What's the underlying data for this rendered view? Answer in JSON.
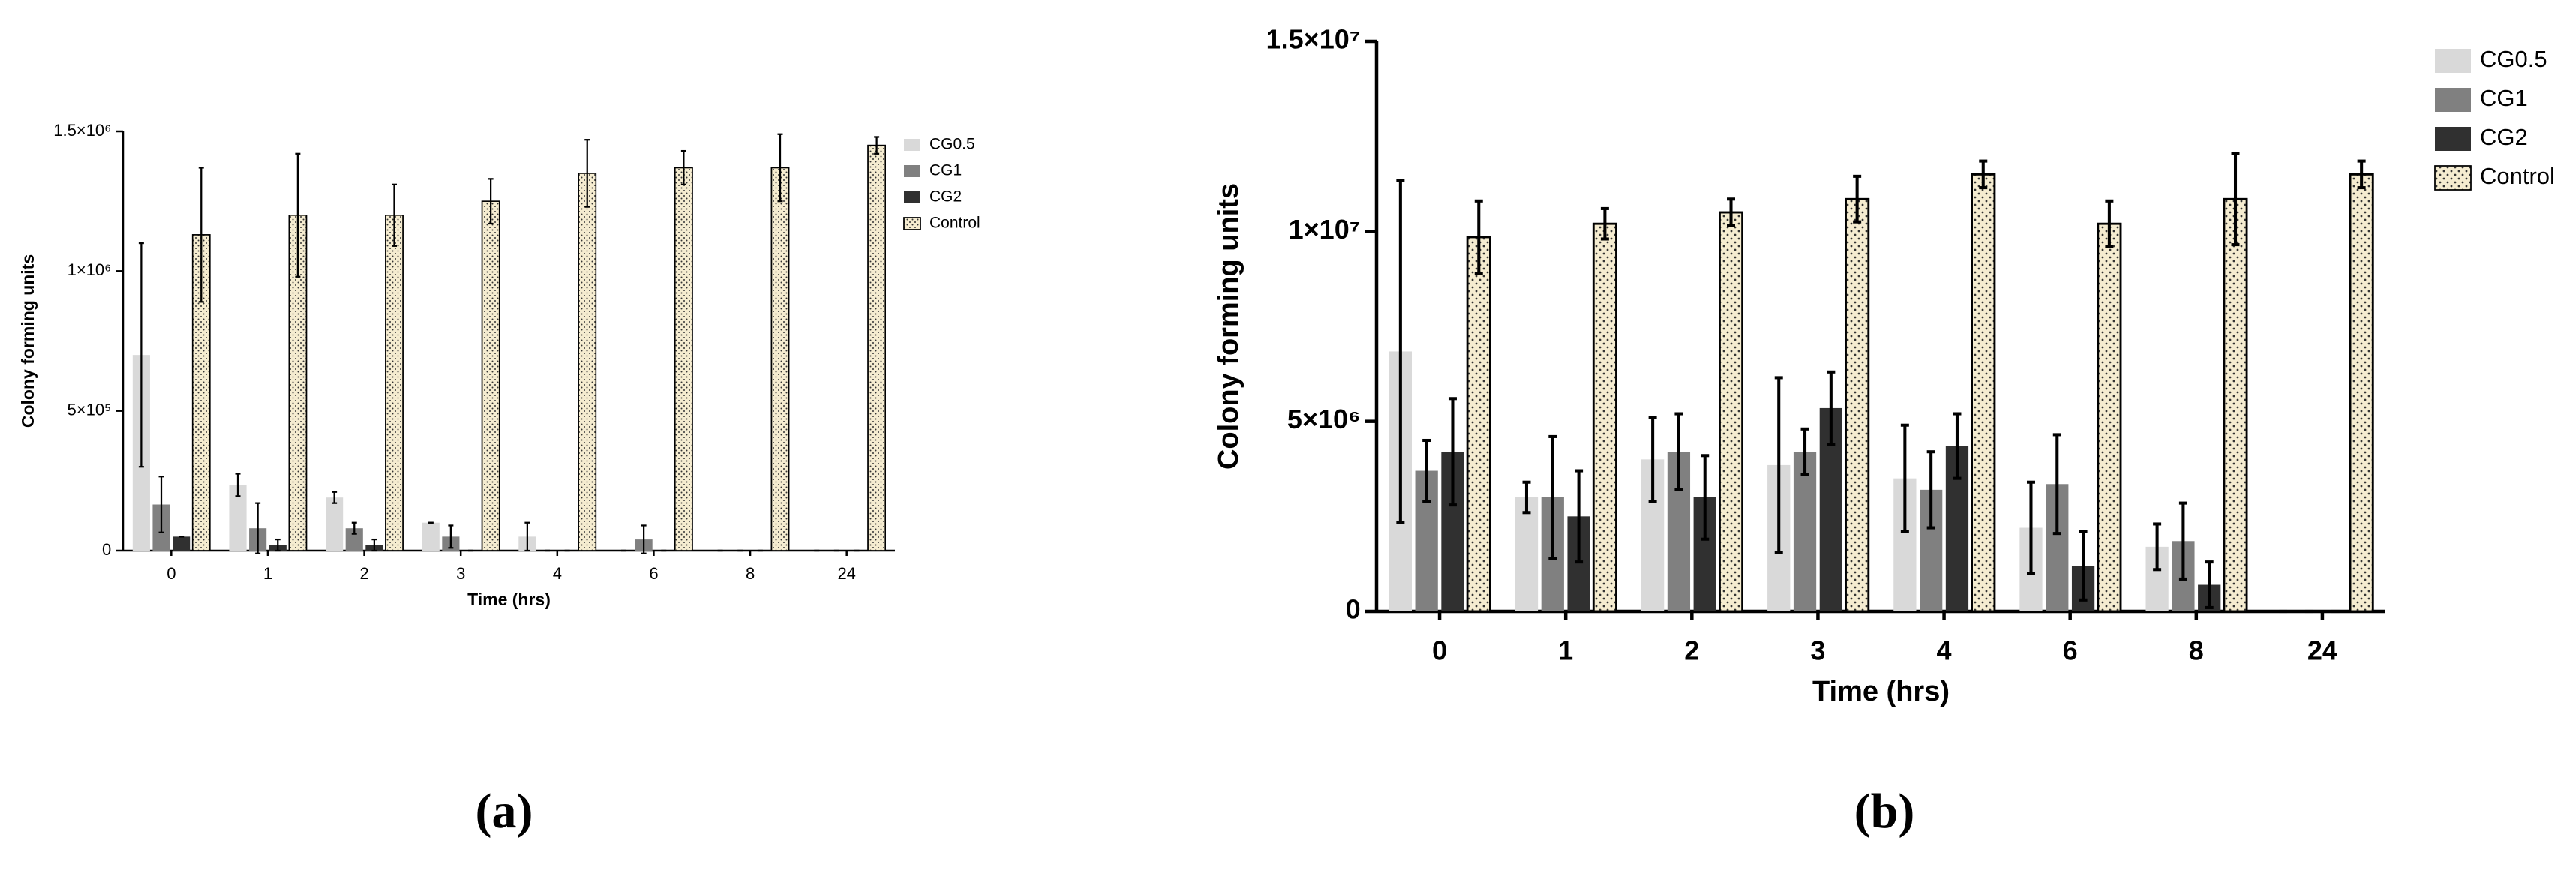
{
  "chart_data": [
    {
      "type": "bar",
      "title": "(a)",
      "x_label": "Time (hrs)",
      "y_label": "Colony forming units",
      "categories": [
        "0",
        "1",
        "2",
        "3",
        "4",
        "6",
        "8",
        "24"
      ],
      "ylim": [
        0,
        1500000
      ],
      "yticks": [
        0,
        {
          "value": 500000,
          "label": "5×10⁵"
        },
        {
          "value": 1000000,
          "label": "1×10⁶"
        },
        {
          "value": 1500000,
          "label": "1.5×10⁶"
        }
      ],
      "legend": "right",
      "series": [
        {
          "name": "CG0.5",
          "color": "#d9d9d9",
          "values": [
            700000,
            235000,
            190000,
            100000,
            50000,
            0,
            0,
            0
          ],
          "errors": [
            400000,
            40000,
            20000,
            0,
            50000,
            0,
            0,
            0
          ]
        },
        {
          "name": "CG1",
          "color": "#808080",
          "values": [
            165000,
            80000,
            80000,
            50000,
            0,
            40000,
            0,
            0
          ],
          "errors": [
            100000,
            90000,
            20000,
            40000,
            0,
            50000,
            0,
            0
          ]
        },
        {
          "name": "CG2",
          "color": "#303030",
          "values": [
            50000,
            20000,
            20000,
            0,
            0,
            0,
            0,
            0
          ],
          "errors": [
            0,
            20000,
            20000,
            0,
            0,
            0,
            0,
            0
          ]
        },
        {
          "name": "Control",
          "color": "#f5ecd0",
          "hatch": "dots",
          "values": [
            1130000,
            1200000,
            1200000,
            1250000,
            1350000,
            1370000,
            1370000,
            1450000
          ],
          "errors": [
            240000,
            220000,
            110000,
            80000,
            120000,
            60000,
            120000,
            30000
          ]
        }
      ]
    },
    {
      "type": "bar",
      "title": "(b)",
      "x_label": "Time (hrs)",
      "y_label": "Colony forming units",
      "categories": [
        "0",
        "1",
        "2",
        "3",
        "4",
        "6",
        "8",
        "24"
      ],
      "ylim": [
        0,
        15000000
      ],
      "yticks": [
        0,
        {
          "value": 5000000,
          "label": "5×10⁶"
        },
        {
          "value": 10000000,
          "label": "1×10⁷"
        },
        {
          "value": 15000000,
          "label": "1.5×10⁷"
        }
      ],
      "legend": "right",
      "series": [
        {
          "name": "CG0.5",
          "color": "#d9d9d9",
          "values": [
            6840000,
            3000000,
            4000000,
            3850000,
            3500000,
            2200000,
            1700000,
            0
          ],
          "errors": [
            4500000,
            400000,
            1100000,
            2300000,
            1400000,
            1200000,
            600000,
            0
          ]
        },
        {
          "name": "CG1",
          "color": "#808080",
          "values": [
            3700000,
            3000000,
            4200000,
            4200000,
            3200000,
            3350000,
            1850000,
            0
          ],
          "errors": [
            800000,
            1600000,
            1000000,
            600000,
            1000000,
            1300000,
            1000000,
            0
          ]
        },
        {
          "name": "CG2",
          "color": "#303030",
          "values": [
            4200000,
            2500000,
            3000000,
            5350000,
            4350000,
            1200000,
            700000,
            0
          ],
          "errors": [
            1400000,
            1200000,
            1100000,
            950000,
            850000,
            900000,
            600000,
            0
          ]
        },
        {
          "name": "Control",
          "color": "#f5ecd0",
          "hatch": "dots",
          "values": [
            9850000,
            10200000,
            10500000,
            10850000,
            11500000,
            10200000,
            10850000,
            11500000
          ],
          "errors": [
            950000,
            400000,
            350000,
            600000,
            350000,
            600000,
            1200000,
            350000
          ]
        }
      ]
    }
  ]
}
